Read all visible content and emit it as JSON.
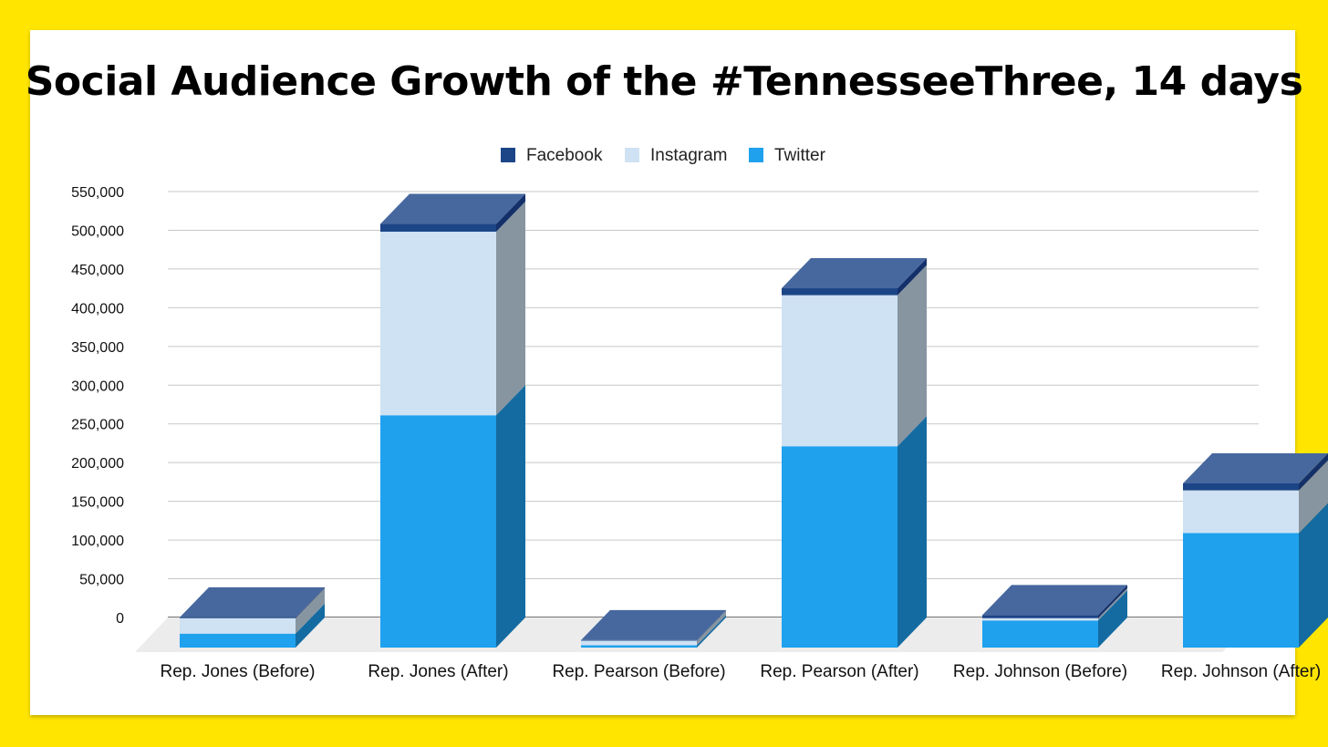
{
  "chart_data": {
    "type": "bar",
    "stacked": true,
    "three_d": true,
    "title": "Social Audience Growth of the #TennesseeThree, 14 days",
    "xlabel": "",
    "ylabel": "",
    "ylim": [
      0,
      550000
    ],
    "yticks": [
      0,
      50000,
      100000,
      150000,
      200000,
      250000,
      300000,
      350000,
      400000,
      450000,
      500000,
      550000
    ],
    "ytick_labels": [
      "0",
      "50,000",
      "100,000",
      "150,000",
      "200,000",
      "250,000",
      "300,000",
      "350,000",
      "400,000",
      "450,000",
      "500,000",
      "550,000"
    ],
    "grid": true,
    "legend_position": "top",
    "categories": [
      "Rep. Jones (Before)",
      "Rep. Jones (After)",
      "Rep. Pearson (Before)",
      "Rep. Pearson (After)",
      "Rep. Johnson (Before)",
      "Rep. Johnson (After)"
    ],
    "series": [
      {
        "name": "Twitter",
        "color": "#1FA1EE",
        "values": [
          18000,
          300000,
          3000,
          260000,
          35000,
          148000
        ]
      },
      {
        "name": "Instagram",
        "color": "#CFE2F3",
        "values": [
          20000,
          237000,
          6000,
          195000,
          3000,
          55000
        ]
      },
      {
        "name": "Facebook",
        "color": "#1C4587",
        "values": [
          1000,
          10000,
          500,
          9000,
          4000,
          9000
        ]
      }
    ],
    "legend_order": [
      "Facebook",
      "Instagram",
      "Twitter"
    ]
  }
}
